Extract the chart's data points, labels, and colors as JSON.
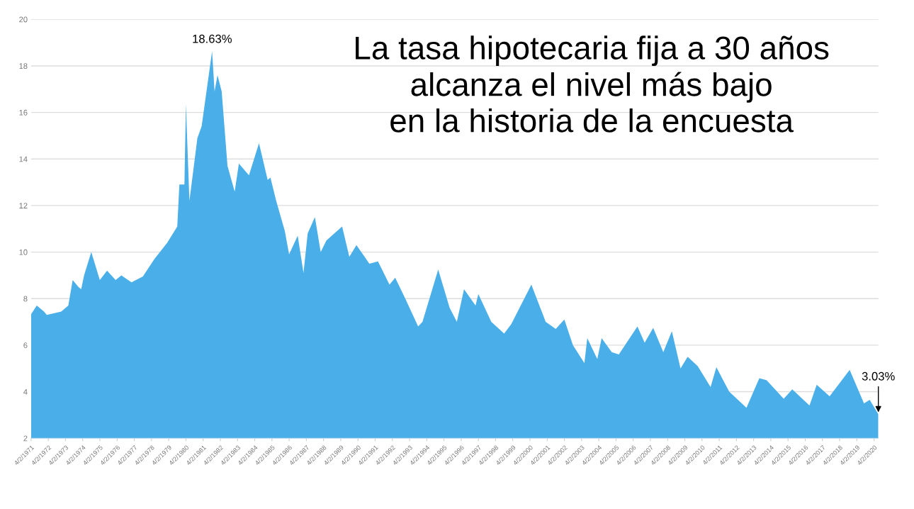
{
  "chart_data": {
    "type": "area",
    "title": "La tasa hipotecaria fija a 30 años\nalcanza el nivel más bajo\nen la historia de la encuesta",
    "x": [
      "1971-04-02",
      "1971-08-01",
      "1972-01-01",
      "1972-03-01",
      "1973-01-01",
      "1973-06-01",
      "1973-09-01",
      "1974-01-01",
      "1974-03-01",
      "1974-05-01",
      "1974-10-01",
      "1975-04-01",
      "1975-09-01",
      "1976-03-01",
      "1976-07-01",
      "1977-02-01",
      "1977-10-01",
      "1978-06-01",
      "1979-03-01",
      "1979-10-01",
      "1979-11-15",
      "1980-03-01",
      "1980-04-01",
      "1980-06-15",
      "1980-12-01",
      "1981-03-01",
      "1981-10-09",
      "1981-12-01",
      "1982-02-01",
      "1982-05-01",
      "1982-09-01",
      "1983-02-01",
      "1983-05-01",
      "1983-12-01",
      "1984-07-01",
      "1985-01-01",
      "1985-03-01",
      "1985-07-01",
      "1986-01-01",
      "1986-04-01",
      "1986-10-01",
      "1987-02-01",
      "1987-05-01",
      "1987-10-01",
      "1988-02-01",
      "1988-06-01",
      "1989-05-01",
      "1989-10-01",
      "1990-03-01",
      "1990-12-01",
      "1991-06-01",
      "1992-02-01",
      "1992-06-01",
      "1993-01-01",
      "1993-10-01",
      "1994-01-01",
      "1994-12-01",
      "1995-08-01",
      "1996-01-01",
      "1996-06-01",
      "1997-02-01",
      "1997-04-01",
      "1998-01-01",
      "1998-10-01",
      "1999-03-01",
      "2000-05-01",
      "2001-03-01",
      "2001-10-01",
      "2002-04-01",
      "2002-10-01",
      "2003-06-01",
      "2003-08-01",
      "2004-03-01",
      "2004-06-01",
      "2005-01-01",
      "2005-06-01",
      "2006-07-01",
      "2006-12-01",
      "2007-06-01",
      "2008-01-01",
      "2008-07-01",
      "2009-01-01",
      "2009-06-01",
      "2010-01-01",
      "2010-10-01",
      "2011-02-01",
      "2011-11-01",
      "2012-11-01",
      "2013-08-01",
      "2014-01-01",
      "2015-01-01",
      "2015-07-01",
      "2016-07-01",
      "2016-12-01",
      "2017-09-01",
      "2018-11-01",
      "2019-09-01",
      "2020-01-01",
      "2020-07-02"
    ],
    "series": [
      {
        "color": "#4aaee8",
        "values": [
          7.33,
          7.7,
          7.44,
          7.3,
          7.44,
          7.7,
          8.8,
          8.5,
          8.4,
          9.0,
          10.0,
          8.8,
          9.2,
          8.8,
          9.0,
          8.7,
          8.95,
          9.7,
          10.4,
          11.1,
          12.9,
          12.9,
          16.35,
          12.2,
          14.9,
          15.4,
          18.63,
          16.9,
          17.6,
          16.9,
          13.7,
          12.6,
          13.8,
          13.3,
          14.68,
          13.1,
          13.2,
          12.2,
          10.9,
          9.9,
          10.7,
          9.1,
          10.8,
          11.5,
          10.0,
          10.5,
          11.1,
          9.8,
          10.3,
          9.5,
          9.6,
          8.6,
          8.9,
          8.0,
          6.8,
          7.0,
          9.25,
          7.6,
          7.0,
          8.4,
          7.7,
          8.2,
          7.0,
          6.5,
          6.9,
          8.6,
          7.0,
          6.7,
          7.1,
          6.0,
          5.23,
          6.3,
          5.4,
          6.3,
          5.7,
          5.6,
          6.8,
          6.1,
          6.74,
          5.7,
          6.6,
          5.0,
          5.5,
          5.1,
          4.2,
          5.05,
          4.0,
          3.31,
          4.58,
          4.5,
          3.7,
          4.1,
          3.41,
          4.3,
          3.8,
          4.94,
          3.5,
          3.65,
          3.03
        ]
      }
    ],
    "xlim": [
      "1971-04-02",
      "2020-07-02"
    ],
    "xticks": [
      {
        "value": "1971-04-02",
        "label": "4/2/1971"
      },
      {
        "value": "1972-04-02",
        "label": "4/2/1972"
      },
      {
        "value": "1973-04-02",
        "label": "4/2/1973"
      },
      {
        "value": "1974-04-02",
        "label": "4/2/1974"
      },
      {
        "value": "1975-04-02",
        "label": "4/2/1975"
      },
      {
        "value": "1976-04-02",
        "label": "4/2/1976"
      },
      {
        "value": "1977-04-02",
        "label": "4/2/1977"
      },
      {
        "value": "1978-04-02",
        "label": "4/2/1978"
      },
      {
        "value": "1979-04-02",
        "label": "4/2/1979"
      },
      {
        "value": "1980-04-02",
        "label": "4/2/1980"
      },
      {
        "value": "1981-04-02",
        "label": "4/2/1981"
      },
      {
        "value": "1982-04-02",
        "label": "4/2/1982"
      },
      {
        "value": "1983-04-02",
        "label": "4/2/1983"
      },
      {
        "value": "1984-04-02",
        "label": "4/2/1984"
      },
      {
        "value": "1985-04-02",
        "label": "4/2/1985"
      },
      {
        "value": "1986-04-02",
        "label": "4/2/1986"
      },
      {
        "value": "1987-04-02",
        "label": "4/2/1987"
      },
      {
        "value": "1988-04-02",
        "label": "4/2/1988"
      },
      {
        "value": "1989-04-02",
        "label": "4/2/1989"
      },
      {
        "value": "1990-04-02",
        "label": "4/2/1990"
      },
      {
        "value": "1991-04-02",
        "label": "4/2/1991"
      },
      {
        "value": "1992-04-02",
        "label": "4/2/1992"
      },
      {
        "value": "1993-04-02",
        "label": "4/2/1993"
      },
      {
        "value": "1994-04-02",
        "label": "4/2/1994"
      },
      {
        "value": "1995-04-02",
        "label": "4/2/1995"
      },
      {
        "value": "1996-04-02",
        "label": "4/2/1996"
      },
      {
        "value": "1997-04-02",
        "label": "4/2/1997"
      },
      {
        "value": "1998-04-02",
        "label": "4/2/1998"
      },
      {
        "value": "1999-04-02",
        "label": "4/2/1999"
      },
      {
        "value": "2000-04-02",
        "label": "4/2/2000"
      },
      {
        "value": "2001-04-02",
        "label": "4/2/2001"
      },
      {
        "value": "2002-04-02",
        "label": "4/2/2002"
      },
      {
        "value": "2003-04-02",
        "label": "4/2/2003"
      },
      {
        "value": "2004-04-02",
        "label": "4/2/2004"
      },
      {
        "value": "2005-04-02",
        "label": "4/2/2005"
      },
      {
        "value": "2006-04-02",
        "label": "4/2/2006"
      },
      {
        "value": "2007-04-02",
        "label": "4/2/2007"
      },
      {
        "value": "2008-04-02",
        "label": "4/2/2008"
      },
      {
        "value": "2009-04-02",
        "label": "4/2/2009"
      },
      {
        "value": "2010-04-02",
        "label": "4/2/2010"
      },
      {
        "value": "2011-04-02",
        "label": "4/2/2011"
      },
      {
        "value": "2012-04-02",
        "label": "4/2/2012"
      },
      {
        "value": "2013-04-02",
        "label": "4/2/2013"
      },
      {
        "value": "2014-04-02",
        "label": "4/2/2014"
      },
      {
        "value": "2015-04-02",
        "label": "4/2/2015"
      },
      {
        "value": "2016-04-02",
        "label": "4/2/2016"
      },
      {
        "value": "2017-04-02",
        "label": "4/2/2017"
      },
      {
        "value": "2018-04-02",
        "label": "4/2/2018"
      },
      {
        "value": "2019-04-02",
        "label": "4/2/2019"
      },
      {
        "value": "2020-04-02",
        "label": "4/2/2020"
      }
    ],
    "ylim": [
      2,
      20
    ],
    "yticks": [
      2,
      4,
      6,
      8,
      10,
      12,
      14,
      16,
      18,
      20
    ],
    "grid": "y",
    "annotations": [
      {
        "text": "18.63%",
        "x": "1981-10-09",
        "y": 18.63
      },
      {
        "text": "3.03%",
        "x": "2020-07-02",
        "y": 3.03
      }
    ]
  }
}
